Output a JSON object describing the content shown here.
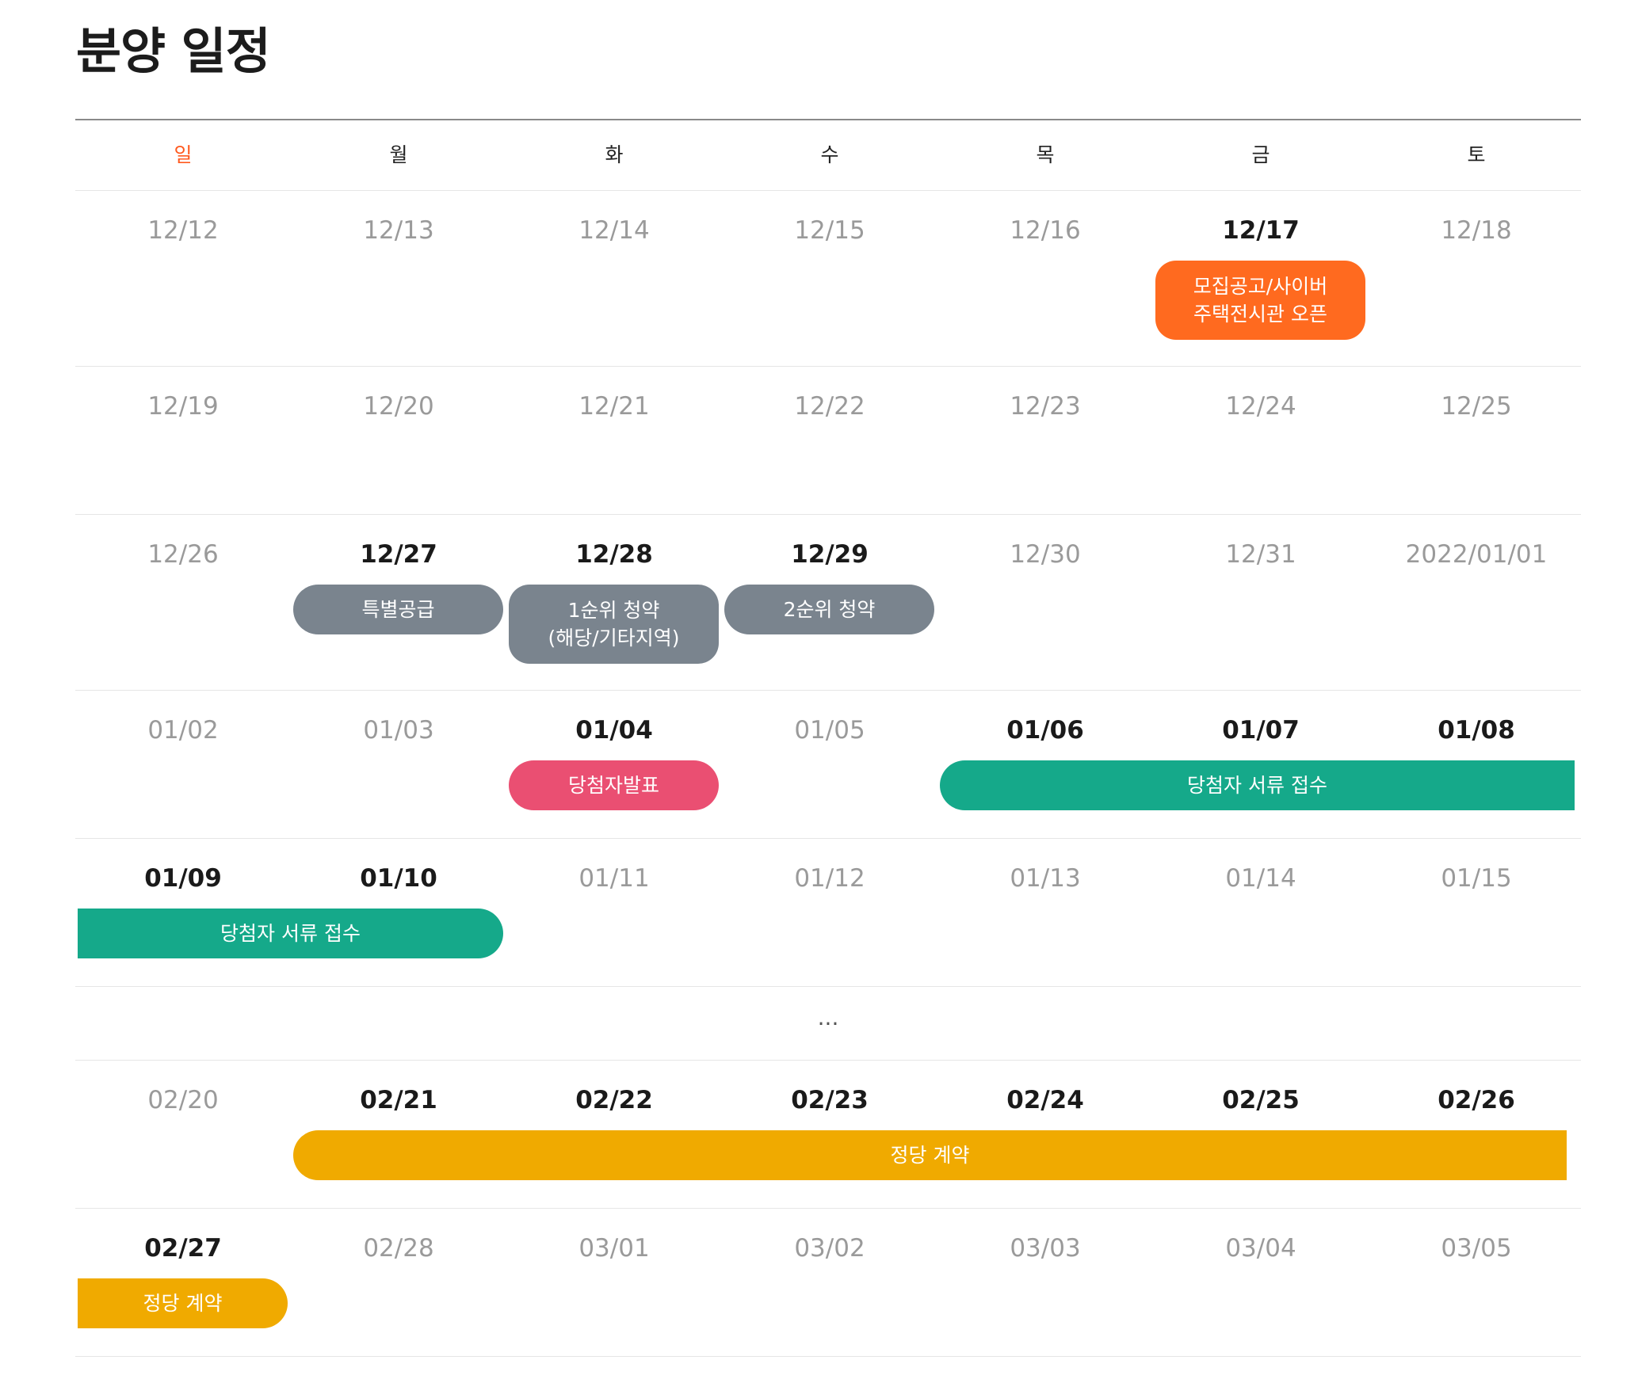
{
  "page": {
    "title": "분양 일정"
  },
  "weekdays": [
    "일",
    "월",
    "화",
    "수",
    "목",
    "금",
    "토"
  ],
  "colors": {
    "sunday": "#ff5a1f",
    "announcement": "#ff6a1f",
    "subscription": "#7a848e",
    "winner": "#ea4f72",
    "documents": "#15a98a",
    "contract": "#f0aa00"
  },
  "weeks": [
    {
      "days": [
        {
          "label": "12/12",
          "bold": false
        },
        {
          "label": "12/13",
          "bold": false
        },
        {
          "label": "12/14",
          "bold": false
        },
        {
          "label": "12/15",
          "bold": false
        },
        {
          "label": "12/16",
          "bold": false
        },
        {
          "label": "12/17",
          "bold": true
        },
        {
          "label": "12/18",
          "bold": false
        }
      ],
      "events": [
        {
          "lines": [
            "모집공고/사이버",
            "주택전시관 오픈"
          ],
          "color": "announcement",
          "start_day": 5,
          "end_day": 5,
          "open_right": false
        }
      ]
    },
    {
      "days": [
        {
          "label": "12/19",
          "bold": false
        },
        {
          "label": "12/20",
          "bold": false
        },
        {
          "label": "12/21",
          "bold": false
        },
        {
          "label": "12/22",
          "bold": false
        },
        {
          "label": "12/23",
          "bold": false
        },
        {
          "label": "12/24",
          "bold": false
        },
        {
          "label": "12/25",
          "bold": false
        }
      ],
      "events": []
    },
    {
      "days": [
        {
          "label": "12/26",
          "bold": false
        },
        {
          "label": "12/27",
          "bold": true
        },
        {
          "label": "12/28",
          "bold": true
        },
        {
          "label": "12/29",
          "bold": true
        },
        {
          "label": "12/30",
          "bold": false
        },
        {
          "label": "12/31",
          "bold": false
        },
        {
          "label": "2022/01/01",
          "bold": false
        }
      ],
      "events": [
        {
          "lines": [
            "특별공급"
          ],
          "color": "subscription",
          "start_day": 1,
          "end_day": 1,
          "open_right": false
        },
        {
          "lines": [
            "1순위 청약",
            "(해당/기타지역)"
          ],
          "color": "subscription",
          "start_day": 2,
          "end_day": 2,
          "open_right": false
        },
        {
          "lines": [
            "2순위 청약"
          ],
          "color": "subscription",
          "start_day": 3,
          "end_day": 3,
          "open_right": false
        }
      ]
    },
    {
      "days": [
        {
          "label": "01/02",
          "bold": false
        },
        {
          "label": "01/03",
          "bold": false
        },
        {
          "label": "01/04",
          "bold": true
        },
        {
          "label": "01/05",
          "bold": false
        },
        {
          "label": "01/06",
          "bold": true
        },
        {
          "label": "01/07",
          "bold": true
        },
        {
          "label": "01/08",
          "bold": true
        }
      ],
      "events": [
        {
          "lines": [
            "당첨자발표"
          ],
          "color": "winner",
          "start_day": 2,
          "end_day": 2,
          "open_right": false
        },
        {
          "lines": [
            "당첨자 서류 접수"
          ],
          "color": "documents",
          "start_day": 4,
          "end_day": 6,
          "open_right": true
        }
      ]
    },
    {
      "days": [
        {
          "label": "01/09",
          "bold": true
        },
        {
          "label": "01/10",
          "bold": true
        },
        {
          "label": "01/11",
          "bold": false
        },
        {
          "label": "01/12",
          "bold": false
        },
        {
          "label": "01/13",
          "bold": false
        },
        {
          "label": "01/14",
          "bold": false
        },
        {
          "label": "01/15",
          "bold": false
        }
      ],
      "events": [
        {
          "lines": [
            "당첨자 서류 접수"
          ],
          "color": "documents",
          "start_day": 0,
          "end_day": 1,
          "open_right": false,
          "open_left": true
        }
      ]
    },
    {
      "days": [
        {
          "label": "02/20",
          "bold": false
        },
        {
          "label": "02/21",
          "bold": true
        },
        {
          "label": "02/22",
          "bold": true
        },
        {
          "label": "02/23",
          "bold": true
        },
        {
          "label": "02/24",
          "bold": true
        },
        {
          "label": "02/25",
          "bold": true
        },
        {
          "label": "02/26",
          "bold": true
        }
      ],
      "events": [
        {
          "lines": [
            "정당 계약"
          ],
          "color": "contract",
          "start_day": 1,
          "end_day": 6,
          "open_right": true
        }
      ]
    },
    {
      "days": [
        {
          "label": "02/27",
          "bold": true
        },
        {
          "label": "02/28",
          "bold": false
        },
        {
          "label": "03/01",
          "bold": false
        },
        {
          "label": "03/02",
          "bold": false
        },
        {
          "label": "03/03",
          "bold": false
        },
        {
          "label": "03/04",
          "bold": false
        },
        {
          "label": "03/05",
          "bold": false
        }
      ],
      "events": [
        {
          "lines": [
            "정당 계약"
          ],
          "color": "contract",
          "start_day": 0,
          "end_day": 0,
          "open_right": false,
          "open_left": true
        }
      ]
    }
  ],
  "gap": {
    "after_week": 4,
    "label": "..."
  }
}
